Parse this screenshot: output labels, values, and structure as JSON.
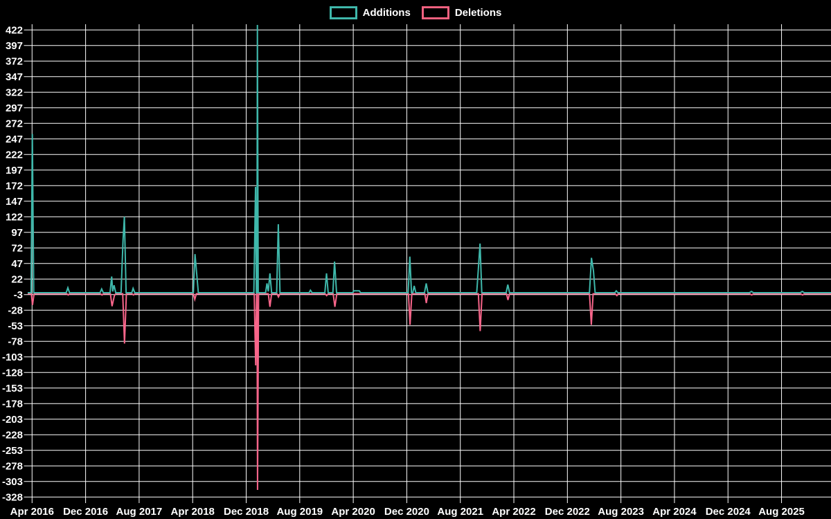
{
  "legend": {
    "items": [
      {
        "label": "Additions",
        "color": "#3fb8ab"
      },
      {
        "label": "Deletions",
        "color": "#f2617f"
      }
    ]
  },
  "chart_data": {
    "type": "line",
    "title": "",
    "xlabel": "",
    "ylabel": "",
    "x_unit": "months since Apr 2016 (weekly samples)",
    "legend_position": "top-center",
    "grid": true,
    "background_color": "#000000",
    "grid_color": "#ffffff",
    "text_color": "#ffffff",
    "y_ticks": [
      422,
      397,
      372,
      347,
      322,
      297,
      272,
      247,
      222,
      197,
      172,
      147,
      122,
      97,
      72,
      47,
      22,
      -3,
      -28,
      -53,
      -78,
      -103,
      -128,
      -153,
      -178,
      -203,
      -228,
      -253,
      -278,
      -303,
      -328
    ],
    "y_axis_range": [
      -336,
      431
    ],
    "x_ticks": [
      {
        "label": "Apr 2016",
        "m": 0
      },
      {
        "label": "Dec 2016",
        "m": 8
      },
      {
        "label": "Aug 2017",
        "m": 16
      },
      {
        "label": "Apr 2018",
        "m": 24
      },
      {
        "label": "Dec 2018",
        "m": 32
      },
      {
        "label": "Aug 2019",
        "m": 40
      },
      {
        "label": "Apr 2020",
        "m": 48
      },
      {
        "label": "Dec 2020",
        "m": 56
      },
      {
        "label": "Aug 2021",
        "m": 64
      },
      {
        "label": "Apr 2022",
        "m": 72
      },
      {
        "label": "Dec 2022",
        "m": 80
      },
      {
        "label": "Aug 2023",
        "m": 88
      },
      {
        "label": "Apr 2024",
        "m": 96
      },
      {
        "label": "Dec 2024",
        "m": 104
      },
      {
        "label": "Aug 2025",
        "m": 112
      }
    ],
    "series": [
      {
        "name": "Additions",
        "color": "#3fb8ab",
        "points": [
          [
            -0.65,
            0
          ],
          [
            -0.15,
            0
          ],
          [
            0.04,
            255
          ],
          [
            0.25,
            0
          ],
          [
            5.1,
            0
          ],
          [
            5.35,
            8
          ],
          [
            5.6,
            0
          ],
          [
            10.15,
            0
          ],
          [
            10.4,
            6
          ],
          [
            10.65,
            0
          ],
          [
            11.65,
            0
          ],
          [
            11.9,
            26
          ],
          [
            12.05,
            2
          ],
          [
            12.25,
            12
          ],
          [
            12.5,
            0
          ],
          [
            13.3,
            0
          ],
          [
            13.6,
            85
          ],
          [
            13.8,
            122
          ],
          [
            14.05,
            0
          ],
          [
            14.9,
            0
          ],
          [
            15.1,
            7
          ],
          [
            15.35,
            0
          ],
          [
            24.1,
            0
          ],
          [
            24.35,
            62
          ],
          [
            24.6,
            31
          ],
          [
            24.85,
            0
          ],
          [
            33.15,
            0
          ],
          [
            33.4,
            170
          ],
          [
            33.52,
            0
          ],
          [
            33.6,
            0
          ],
          [
            33.68,
            430
          ],
          [
            33.8,
            0
          ],
          [
            34.9,
            0
          ],
          [
            35.1,
            15
          ],
          [
            35.3,
            2
          ],
          [
            35.55,
            31
          ],
          [
            35.8,
            0
          ],
          [
            36.55,
            0
          ],
          [
            36.8,
            110
          ],
          [
            37.05,
            0
          ],
          [
            41.4,
            0
          ],
          [
            41.6,
            4
          ],
          [
            41.85,
            0
          ],
          [
            43.75,
            0
          ],
          [
            44.0,
            31
          ],
          [
            44.25,
            0
          ],
          [
            44.95,
            0
          ],
          [
            45.2,
            50
          ],
          [
            45.5,
            0
          ],
          [
            47.9,
            0
          ],
          [
            48.1,
            3
          ],
          [
            48.9,
            3
          ],
          [
            49.1,
            0
          ],
          [
            56.2,
            0
          ],
          [
            56.45,
            58
          ],
          [
            56.7,
            0
          ],
          [
            56.9,
            0
          ],
          [
            57.1,
            11
          ],
          [
            57.35,
            0
          ],
          [
            58.65,
            0
          ],
          [
            58.9,
            15
          ],
          [
            59.15,
            0
          ],
          [
            66.45,
            0
          ],
          [
            66.7,
            39
          ],
          [
            66.95,
            79
          ],
          [
            67.2,
            0
          ],
          [
            70.85,
            0
          ],
          [
            71.1,
            13
          ],
          [
            71.35,
            0
          ],
          [
            83.3,
            0
          ],
          [
            83.6,
            56
          ],
          [
            83.9,
            35
          ],
          [
            84.15,
            0
          ],
          [
            87.1,
            0
          ],
          [
            87.3,
            3
          ],
          [
            87.55,
            0
          ],
          [
            107.2,
            0
          ],
          [
            107.5,
            2
          ],
          [
            107.8,
            0
          ],
          [
            114.8,
            0
          ],
          [
            115.1,
            2
          ],
          [
            115.4,
            0
          ],
          [
            119.4,
            0
          ]
        ]
      },
      {
        "name": "Deletions",
        "color": "#f8658a",
        "points": [
          [
            -0.65,
            0
          ],
          [
            -0.1,
            0
          ],
          [
            0.06,
            -18
          ],
          [
            0.3,
            0
          ],
          [
            5.2,
            0
          ],
          [
            5.4,
            -2
          ],
          [
            5.6,
            0
          ],
          [
            10.2,
            0
          ],
          [
            10.45,
            -2
          ],
          [
            10.65,
            0
          ],
          [
            11.7,
            0
          ],
          [
            11.95,
            -20
          ],
          [
            12.3,
            -3
          ],
          [
            12.5,
            0
          ],
          [
            13.55,
            0
          ],
          [
            13.82,
            -80
          ],
          [
            14.1,
            0
          ],
          [
            14.95,
            0
          ],
          [
            15.15,
            -2
          ],
          [
            15.35,
            0
          ],
          [
            24.1,
            0
          ],
          [
            24.32,
            -9
          ],
          [
            24.55,
            0
          ],
          [
            33.2,
            0
          ],
          [
            33.42,
            -115
          ],
          [
            33.55,
            0
          ],
          [
            33.62,
            0
          ],
          [
            33.7,
            -315
          ],
          [
            33.85,
            0
          ],
          [
            35.3,
            0
          ],
          [
            35.55,
            -21
          ],
          [
            35.8,
            0
          ],
          [
            36.6,
            0
          ],
          [
            36.82,
            -5
          ],
          [
            37.05,
            0
          ],
          [
            43.8,
            0
          ],
          [
            44.02,
            -3
          ],
          [
            44.25,
            0
          ],
          [
            45.0,
            0
          ],
          [
            45.25,
            -21
          ],
          [
            45.55,
            0
          ],
          [
            56.25,
            0
          ],
          [
            56.48,
            -50
          ],
          [
            56.75,
            0
          ],
          [
            58.7,
            0
          ],
          [
            58.92,
            -15
          ],
          [
            59.15,
            0
          ],
          [
            66.7,
            0
          ],
          [
            66.97,
            -60
          ],
          [
            67.25,
            0
          ],
          [
            70.9,
            0
          ],
          [
            71.12,
            -10
          ],
          [
            71.35,
            0
          ],
          [
            83.3,
            0
          ],
          [
            83.58,
            -50
          ],
          [
            83.85,
            0
          ],
          [
            87.15,
            0
          ],
          [
            87.4,
            -3
          ],
          [
            87.6,
            0
          ],
          [
            107.25,
            0
          ],
          [
            107.55,
            -2
          ],
          [
            107.8,
            0
          ],
          [
            114.85,
            0
          ],
          [
            115.15,
            -2
          ],
          [
            115.4,
            0
          ],
          [
            119.4,
            0
          ]
        ]
      }
    ]
  }
}
